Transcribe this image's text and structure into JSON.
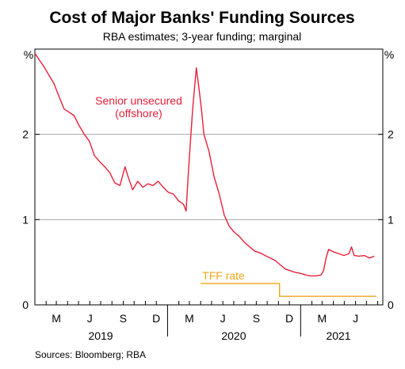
{
  "chart_data": {
    "type": "line",
    "title": "Cost of Major Banks' Funding Sources",
    "subtitle": "RBA estimates; 3-year funding; marginal",
    "yunit_left": "%",
    "yunit_right": "%",
    "ylim": [
      0,
      3
    ],
    "yticks": [
      "1",
      "2"
    ],
    "xlim": [
      "2019-01-01",
      "2021-08-15"
    ],
    "xticks": [
      {
        "label": "M",
        "date": "2019-03-01"
      },
      {
        "label": "J",
        "date": "2019-06-01"
      },
      {
        "label": "S",
        "date": "2019-09-01"
      },
      {
        "label": "D",
        "date": "2019-12-01"
      },
      {
        "label": "M",
        "date": "2020-03-01"
      },
      {
        "label": "J",
        "date": "2020-06-01"
      },
      {
        "label": "S",
        "date": "2020-09-01"
      },
      {
        "label": "D",
        "date": "2020-12-01"
      },
      {
        "label": "M",
        "date": "2021-03-01"
      },
      {
        "label": "J",
        "date": "2021-06-01"
      }
    ],
    "years": [
      {
        "label": "2019",
        "date": "2019-07-01"
      },
      {
        "label": "2020",
        "date": "2020-07-01"
      },
      {
        "label": "2021",
        "date": "2021-04-15"
      }
    ],
    "grid": true,
    "series": [
      {
        "name": "Senior unsecured (offshore)",
        "label_lines": [
          "Senior unsecured",
          "(offshore)"
        ],
        "color": "#e8203a",
        "points": [
          [
            "2019-01-01",
            2.95
          ],
          [
            "2019-01-12",
            2.88
          ],
          [
            "2019-01-25",
            2.8
          ],
          [
            "2019-02-08",
            2.7
          ],
          [
            "2019-02-22",
            2.6
          ],
          [
            "2019-03-08",
            2.45
          ],
          [
            "2019-03-22",
            2.3
          ],
          [
            "2019-04-05",
            2.26
          ],
          [
            "2019-04-19",
            2.22
          ],
          [
            "2019-05-03",
            2.1
          ],
          [
            "2019-05-17",
            2.0
          ],
          [
            "2019-05-31",
            1.92
          ],
          [
            "2019-06-14",
            1.75
          ],
          [
            "2019-06-28",
            1.68
          ],
          [
            "2019-07-12",
            1.62
          ],
          [
            "2019-07-26",
            1.55
          ],
          [
            "2019-08-09",
            1.43
          ],
          [
            "2019-08-23",
            1.4
          ],
          [
            "2019-09-06",
            1.62
          ],
          [
            "2019-09-13",
            1.52
          ],
          [
            "2019-09-27",
            1.35
          ],
          [
            "2019-10-11",
            1.45
          ],
          [
            "2019-10-25",
            1.38
          ],
          [
            "2019-11-08",
            1.42
          ],
          [
            "2019-11-22",
            1.4
          ],
          [
            "2019-12-06",
            1.45
          ],
          [
            "2019-12-20",
            1.38
          ],
          [
            "2020-01-03",
            1.32
          ],
          [
            "2020-01-17",
            1.3
          ],
          [
            "2020-01-31",
            1.22
          ],
          [
            "2020-02-14",
            1.18
          ],
          [
            "2020-02-21",
            1.1
          ],
          [
            "2020-02-28",
            1.6
          ],
          [
            "2020-03-10",
            2.3
          ],
          [
            "2020-03-20",
            2.78
          ],
          [
            "2020-03-27",
            2.55
          ],
          [
            "2020-04-03",
            2.3
          ],
          [
            "2020-04-10",
            2.0
          ],
          [
            "2020-04-24",
            1.8
          ],
          [
            "2020-05-08",
            1.5
          ],
          [
            "2020-05-22",
            1.3
          ],
          [
            "2020-06-05",
            1.05
          ],
          [
            "2020-06-19",
            0.92
          ],
          [
            "2020-07-03",
            0.85
          ],
          [
            "2020-07-17",
            0.8
          ],
          [
            "2020-07-31",
            0.73
          ],
          [
            "2020-08-14",
            0.68
          ],
          [
            "2020-08-28",
            0.63
          ],
          [
            "2020-09-11",
            0.61
          ],
          [
            "2020-09-25",
            0.58
          ],
          [
            "2020-10-09",
            0.55
          ],
          [
            "2020-10-23",
            0.52
          ],
          [
            "2020-11-06",
            0.47
          ],
          [
            "2020-11-20",
            0.42
          ],
          [
            "2020-12-04",
            0.4
          ],
          [
            "2020-12-18",
            0.38
          ],
          [
            "2021-01-01",
            0.37
          ],
          [
            "2021-01-15",
            0.35
          ],
          [
            "2021-01-29",
            0.34
          ],
          [
            "2021-02-12",
            0.34
          ],
          [
            "2021-02-26",
            0.35
          ],
          [
            "2021-03-05",
            0.4
          ],
          [
            "2021-03-12",
            0.55
          ],
          [
            "2021-03-19",
            0.65
          ],
          [
            "2021-04-02",
            0.62
          ],
          [
            "2021-04-16",
            0.6
          ],
          [
            "2021-04-30",
            0.58
          ],
          [
            "2021-05-14",
            0.6
          ],
          [
            "2021-05-21",
            0.68
          ],
          [
            "2021-05-28",
            0.58
          ],
          [
            "2021-06-11",
            0.57
          ],
          [
            "2021-06-25",
            0.58
          ],
          [
            "2021-07-09",
            0.55
          ],
          [
            "2021-07-23",
            0.57
          ]
        ]
      },
      {
        "name": "TFF rate",
        "label_lines": [
          "TFF rate"
        ],
        "color": "#f2a51a",
        "points": [
          [
            "2020-04-01",
            0.25
          ],
          [
            "2020-11-04",
            0.25
          ],
          [
            "2020-11-04",
            0.1
          ],
          [
            "2021-07-28",
            0.1
          ]
        ]
      }
    ],
    "source": "Sources: Bloomberg; RBA"
  }
}
